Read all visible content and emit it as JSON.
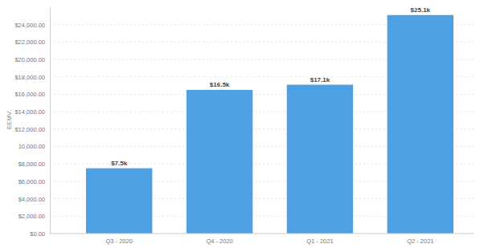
{
  "chart_data": {
    "type": "bar",
    "y_label": "EEMV",
    "categories": [
      "Q3 - 2020",
      "Q4 - 2020",
      "Q1 - 2021",
      "Q2 - 2021"
    ],
    "values": [
      7500,
      16500,
      17100,
      25100
    ],
    "value_labels": [
      "$7.5k",
      "$16.5k",
      "$17.1k",
      "$25.1k"
    ],
    "color": "#4f9fe3",
    "ylim": [
      0,
      26000
    ],
    "yticks": [
      {
        "value": 0,
        "label": "$0.00"
      },
      {
        "value": 2000,
        "label": "$2,000.00"
      },
      {
        "value": 4000,
        "label": "$4,000.00"
      },
      {
        "value": 6000,
        "label": "$6,000.00"
      },
      {
        "value": 8000,
        "label": "$8,000.00"
      },
      {
        "value": 10000,
        "label": "10,000.00"
      },
      {
        "value": 12000,
        "label": "$12,000.00"
      },
      {
        "value": 14000,
        "label": "$14,000.00"
      },
      {
        "value": 16000,
        "label": "$16,000.00"
      },
      {
        "value": 18000,
        "label": "$18,000.00"
      },
      {
        "value": 20000,
        "label": "$20,000.00"
      },
      {
        "value": 22000,
        "label": "$22,000.00"
      },
      {
        "value": 24000,
        "label": "$24,000.00"
      }
    ],
    "grid": true,
    "data_labels": true
  }
}
